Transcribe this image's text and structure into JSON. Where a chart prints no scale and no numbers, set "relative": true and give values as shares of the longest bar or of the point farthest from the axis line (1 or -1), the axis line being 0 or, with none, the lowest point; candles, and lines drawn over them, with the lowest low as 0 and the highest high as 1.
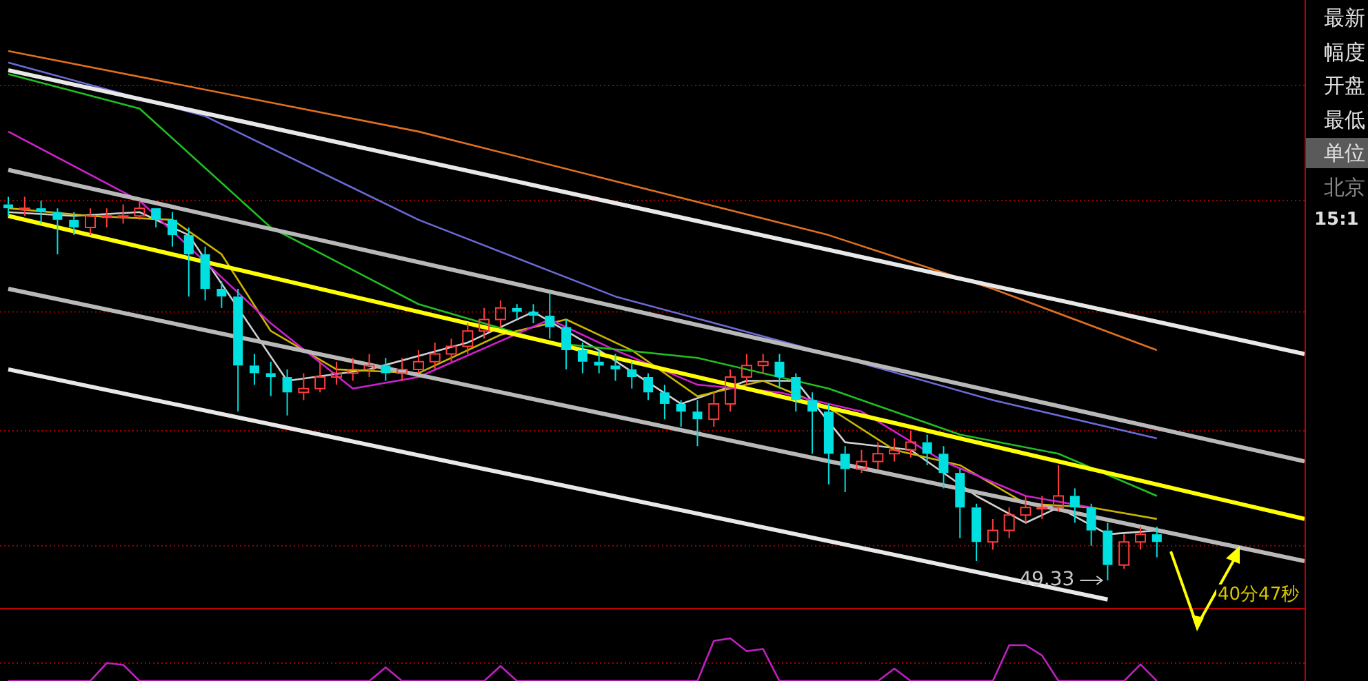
{
  "chart_data": [
    {
      "type": "candlestick",
      "relative": true,
      "ref_lines": [
        {
          "axis": "y",
          "value": 1.29,
          "color": "#a00000",
          "line_style": "dotted"
        },
        {
          "axis": "y",
          "value": 0.99,
          "color": "#a00000",
          "line_style": "dotted"
        },
        {
          "axis": "y",
          "value": 0.7,
          "color": "#a00000",
          "line_style": "dotted"
        },
        {
          "axis": "y",
          "value": 0.39,
          "color": "#a00000",
          "line_style": "dotted"
        },
        {
          "axis": "y",
          "value": 0.09,
          "color": "#a00000",
          "line_style": "dotted"
        }
      ],
      "categories": [
        null,
        null,
        null,
        null,
        null,
        null,
        null,
        null,
        null,
        null,
        null,
        null,
        null,
        null,
        null,
        null,
        null,
        null,
        null,
        null,
        null,
        null,
        null,
        null,
        null,
        null,
        null,
        null,
        null,
        null,
        null,
        null,
        null,
        null,
        null,
        null,
        null,
        null,
        null,
        null,
        null,
        null,
        null,
        null,
        null,
        null,
        null,
        null,
        null,
        null,
        null,
        null,
        null,
        null,
        null,
        null,
        null,
        null,
        null,
        null,
        null,
        null,
        null,
        null,
        null,
        null,
        null,
        null,
        null,
        null,
        null,
        null,
        null,
        null,
        null,
        null,
        null,
        null,
        null,
        null
      ],
      "ohlc": [
        [
          0.98,
          1.0,
          0.95,
          0.97
        ],
        [
          0.97,
          1.0,
          0.95,
          0.97
        ],
        [
          0.97,
          0.99,
          0.93,
          0.96
        ],
        [
          0.96,
          0.97,
          0.85,
          0.94
        ],
        [
          0.94,
          0.96,
          0.9,
          0.92
        ],
        [
          0.92,
          0.97,
          0.9,
          0.95
        ],
        [
          0.95,
          0.97,
          0.92,
          0.95
        ],
        [
          0.95,
          0.98,
          0.93,
          0.95
        ],
        [
          0.95,
          0.99,
          0.94,
          0.97
        ],
        [
          0.97,
          0.97,
          0.92,
          0.94
        ],
        [
          0.94,
          0.96,
          0.87,
          0.9
        ],
        [
          0.9,
          0.92,
          0.74,
          0.85
        ],
        [
          0.85,
          0.87,
          0.73,
          0.76
        ],
        [
          0.76,
          0.78,
          0.71,
          0.74
        ],
        [
          0.74,
          0.76,
          0.44,
          0.56
        ],
        [
          0.56,
          0.59,
          0.51,
          0.54
        ],
        [
          0.54,
          0.57,
          0.48,
          0.53
        ],
        [
          0.53,
          0.55,
          0.43,
          0.49
        ],
        [
          0.49,
          0.54,
          0.47,
          0.5
        ],
        [
          0.5,
          0.57,
          0.49,
          0.53
        ],
        [
          0.53,
          0.57,
          0.51,
          0.54
        ],
        [
          0.54,
          0.58,
          0.52,
          0.55
        ],
        [
          0.55,
          0.59,
          0.53,
          0.56
        ],
        [
          0.56,
          0.58,
          0.52,
          0.54
        ],
        [
          0.54,
          0.58,
          0.52,
          0.55
        ],
        [
          0.55,
          0.6,
          0.54,
          0.57
        ],
        [
          0.57,
          0.62,
          0.55,
          0.59
        ],
        [
          0.59,
          0.63,
          0.57,
          0.61
        ],
        [
          0.61,
          0.67,
          0.59,
          0.65
        ],
        [
          0.65,
          0.71,
          0.63,
          0.68
        ],
        [
          0.68,
          0.73,
          0.66,
          0.71
        ],
        [
          0.71,
          0.72,
          0.68,
          0.7
        ],
        [
          0.7,
          0.72,
          0.67,
          0.69
        ],
        [
          0.69,
          0.75,
          0.63,
          0.66
        ],
        [
          0.66,
          0.68,
          0.55,
          0.6
        ],
        [
          0.6,
          0.62,
          0.54,
          0.57
        ],
        [
          0.57,
          0.6,
          0.54,
          0.56
        ],
        [
          0.56,
          0.59,
          0.52,
          0.55
        ],
        [
          0.55,
          0.57,
          0.5,
          0.53
        ],
        [
          0.53,
          0.54,
          0.47,
          0.49
        ],
        [
          0.49,
          0.51,
          0.42,
          0.46
        ],
        [
          0.46,
          0.47,
          0.4,
          0.44
        ],
        [
          0.44,
          0.47,
          0.35,
          0.42
        ],
        [
          0.42,
          0.49,
          0.4,
          0.46
        ],
        [
          0.46,
          0.55,
          0.44,
          0.53
        ],
        [
          0.53,
          0.59,
          0.51,
          0.56
        ],
        [
          0.56,
          0.59,
          0.54,
          0.57
        ],
        [
          0.57,
          0.59,
          0.5,
          0.53
        ],
        [
          0.53,
          0.54,
          0.44,
          0.47
        ],
        [
          0.47,
          0.49,
          0.33,
          0.44
        ],
        [
          0.44,
          0.46,
          0.25,
          0.33
        ],
        [
          0.33,
          0.35,
          0.23,
          0.29
        ],
        [
          0.29,
          0.34,
          0.28,
          0.31
        ],
        [
          0.31,
          0.36,
          0.29,
          0.33
        ],
        [
          0.33,
          0.37,
          0.31,
          0.34
        ],
        [
          0.34,
          0.39,
          0.32,
          0.36
        ],
        [
          0.36,
          0.38,
          0.3,
          0.33
        ],
        [
          0.33,
          0.35,
          0.24,
          0.28
        ],
        [
          0.28,
          0.29,
          0.11,
          0.19
        ],
        [
          0.19,
          0.2,
          0.05,
          0.1
        ],
        [
          0.1,
          0.16,
          0.08,
          0.13
        ],
        [
          0.13,
          0.19,
          0.11,
          0.17
        ],
        [
          0.17,
          0.22,
          0.15,
          0.19
        ],
        [
          0.19,
          0.22,
          0.16,
          0.19
        ],
        [
          0.19,
          0.3,
          0.18,
          0.22
        ],
        [
          0.22,
          0.24,
          0.15,
          0.19
        ],
        [
          0.19,
          0.2,
          0.09,
          0.13
        ],
        [
          0.13,
          0.15,
          0,
          0.04
        ],
        [
          0.04,
          0.12,
          0.03,
          0.1
        ],
        [
          0.1,
          0.14,
          0.08,
          0.12
        ],
        [
          0.12,
          0.14,
          0.06,
          0.1
        ],
        null,
        null,
        null,
        null,
        null,
        null,
        null,
        null,
        null
      ],
      "series": [
        {
          "type": "line",
          "color": "#e8e8e8",
          "values": [
            1.33,
            null,
            null,
            null,
            null,
            null,
            null,
            null,
            null,
            null,
            null,
            null,
            null,
            null,
            null,
            null,
            null,
            null,
            null,
            null,
            null,
            null,
            null,
            null,
            null,
            null,
            null,
            null,
            null,
            null,
            null,
            null,
            null,
            null,
            null,
            null,
            null,
            null,
            null,
            null,
            null,
            null,
            null,
            null,
            null,
            null,
            null,
            null,
            null,
            null,
            null,
            null,
            null,
            null,
            null,
            null,
            null,
            null,
            null,
            null,
            null,
            null,
            null,
            null,
            null,
            null,
            null,
            null,
            null,
            null,
            null,
            null,
            null,
            null,
            null,
            null,
            null,
            null,
            null,
            0.59
          ]
        },
        {
          "type": "line",
          "color": "#b8b8b8",
          "values": [
            1.07,
            null,
            null,
            null,
            null,
            null,
            null,
            null,
            null,
            null,
            null,
            null,
            null,
            null,
            null,
            null,
            null,
            null,
            null,
            null,
            null,
            null,
            null,
            null,
            null,
            null,
            null,
            null,
            null,
            null,
            null,
            null,
            null,
            null,
            null,
            null,
            null,
            null,
            null,
            null,
            null,
            null,
            null,
            null,
            null,
            null,
            null,
            null,
            null,
            null,
            null,
            null,
            null,
            null,
            null,
            null,
            null,
            null,
            null,
            null,
            null,
            null,
            null,
            null,
            null,
            null,
            null,
            null,
            null,
            null,
            null,
            null,
            null,
            null,
            null,
            null,
            null,
            null,
            null,
            0.31
          ]
        },
        {
          "type": "line",
          "color": "#ffff00",
          "values": [
            0.95,
            null,
            null,
            null,
            null,
            null,
            null,
            null,
            null,
            null,
            null,
            null,
            null,
            null,
            null,
            null,
            null,
            null,
            null,
            null,
            null,
            null,
            null,
            null,
            null,
            null,
            null,
            null,
            null,
            null,
            null,
            null,
            null,
            null,
            null,
            null,
            null,
            null,
            null,
            null,
            null,
            null,
            null,
            null,
            null,
            null,
            null,
            null,
            null,
            null,
            null,
            null,
            null,
            null,
            null,
            null,
            null,
            null,
            null,
            null,
            null,
            null,
            null,
            null,
            null,
            null,
            null,
            null,
            null,
            null,
            null,
            null,
            null,
            null,
            null,
            null,
            null,
            null,
            null,
            0.16
          ]
        },
        {
          "type": "line",
          "color": "#b8b8b8",
          "values": [
            0.76,
            null,
            null,
            null,
            null,
            null,
            null,
            null,
            null,
            null,
            null,
            null,
            null,
            null,
            null,
            null,
            null,
            null,
            null,
            null,
            null,
            null,
            null,
            null,
            null,
            null,
            null,
            null,
            null,
            null,
            null,
            null,
            null,
            null,
            null,
            null,
            null,
            null,
            null,
            null,
            null,
            null,
            null,
            null,
            null,
            null,
            null,
            null,
            null,
            null,
            null,
            null,
            null,
            null,
            null,
            null,
            null,
            null,
            null,
            null,
            null,
            null,
            null,
            null,
            null,
            null,
            null,
            null,
            null,
            null,
            null,
            null,
            null,
            null,
            null,
            null,
            null,
            null,
            null,
            0.05
          ]
        },
        {
          "type": "line",
          "color": "#e8e8e8",
          "values": [
            0.55,
            null,
            null,
            null,
            null,
            null,
            null,
            null,
            null,
            null,
            null,
            null,
            null,
            null,
            null,
            null,
            null,
            null,
            null,
            null,
            null,
            null,
            null,
            null,
            null,
            null,
            null,
            null,
            null,
            null,
            null,
            null,
            null,
            null,
            null,
            null,
            null,
            null,
            null,
            null,
            null,
            null,
            null,
            null,
            null,
            null,
            null,
            null,
            null,
            null,
            null,
            null,
            null,
            null,
            null,
            null,
            null,
            null,
            null,
            null,
            null,
            null,
            null,
            null,
            null,
            null,
            null,
            -0.05,
            null,
            null,
            null,
            null,
            null,
            null,
            null,
            null,
            null,
            null,
            null,
            null
          ]
        },
        {
          "type": "line",
          "color": "#e07020",
          "values": [
            1.38,
            null,
            null,
            null,
            null,
            null,
            null,
            null,
            null,
            null,
            null,
            null,
            null,
            null,
            null,
            null,
            null,
            null,
            null,
            null,
            null,
            null,
            null,
            null,
            null,
            1.17,
            null,
            null,
            null,
            null,
            null,
            null,
            null,
            null,
            null,
            null,
            null,
            null,
            null,
            null,
            null,
            null,
            null,
            null,
            null,
            null,
            null,
            null,
            null,
            null,
            0.9,
            null,
            null,
            null,
            null,
            null,
            null,
            null,
            null,
            null,
            0.76,
            null,
            null,
            null,
            null,
            null,
            null,
            null,
            null,
            null,
            0.6,
            null,
            null,
            null,
            null,
            null,
            null,
            null,
            null,
            null
          ]
        },
        {
          "type": "line",
          "color": "#6a6ad8",
          "values": [
            1.35,
            null,
            null,
            null,
            null,
            null,
            null,
            null,
            null,
            null,
            null,
            null,
            1.21,
            null,
            null,
            null,
            null,
            null,
            null,
            null,
            null,
            null,
            null,
            null,
            null,
            0.94,
            null,
            null,
            null,
            null,
            null,
            null,
            null,
            null,
            null,
            null,
            null,
            0.74,
            null,
            null,
            null,
            null,
            null,
            null,
            null,
            null,
            null,
            null,
            null,
            null,
            0.59,
            null,
            null,
            null,
            null,
            null,
            null,
            null,
            null,
            null,
            0.47,
            null,
            null,
            null,
            null,
            null,
            null,
            null,
            null,
            null,
            0.37,
            null,
            null,
            null,
            null,
            null,
            null,
            null,
            null,
            null
          ]
        },
        {
          "type": "line",
          "color": "#20c020",
          "values": [
            1.32,
            null,
            null,
            null,
            null,
            null,
            null,
            null,
            1.23,
            null,
            null,
            null,
            null,
            null,
            null,
            null,
            0.92,
            null,
            null,
            null,
            null,
            null,
            null,
            null,
            null,
            0.72,
            null,
            null,
            null,
            null,
            null,
            null,
            null,
            0.62,
            null,
            null,
            null,
            null,
            null,
            null,
            null,
            null,
            0.58,
            null,
            null,
            null,
            null,
            null,
            null,
            null,
            0.5,
            null,
            null,
            null,
            null,
            null,
            null,
            null,
            0.38,
            null,
            null,
            null,
            null,
            null,
            0.33,
            null,
            null,
            null,
            null,
            null,
            0.22,
            null,
            null,
            null,
            null,
            null,
            null,
            null,
            null,
            null
          ]
        },
        {
          "type": "line",
          "color": "#d020d0",
          "values": [
            1.17,
            null,
            null,
            null,
            null,
            null,
            null,
            null,
            0.99,
            null,
            null,
            null,
            null,
            null,
            null,
            null,
            0.67,
            null,
            null,
            null,
            null,
            0.5,
            null,
            null,
            null,
            0.53,
            null,
            null,
            null,
            null,
            null,
            null,
            null,
            0.68,
            null,
            null,
            null,
            0.6,
            null,
            null,
            null,
            null,
            0.51,
            null,
            null,
            null,
            null,
            0.49,
            null,
            null,
            null,
            null,
            0.44,
            null,
            null,
            null,
            null,
            0.31,
            null,
            null,
            null,
            null,
            0.22,
            null,
            null,
            null,
            0.19,
            null,
            null,
            null,
            null,
            null,
            null,
            null,
            null,
            null,
            null,
            null,
            null,
            null
          ]
        },
        {
          "type": "line",
          "color": "#c8b400",
          "values": [
            0.97,
            null,
            null,
            null,
            null,
            0.95,
            null,
            null,
            null,
            null,
            0.94,
            null,
            null,
            0.85,
            null,
            null,
            0.65,
            null,
            null,
            null,
            0.55,
            null,
            null,
            null,
            null,
            0.54,
            null,
            null,
            null,
            null,
            0.64,
            null,
            null,
            null,
            0.68,
            null,
            null,
            null,
            0.6,
            null,
            null,
            null,
            0.48,
            null,
            null,
            null,
            0.52,
            null,
            null,
            null,
            0.45,
            null,
            null,
            null,
            0.34,
            null,
            null,
            null,
            0.3,
            null,
            null,
            null,
            0.2,
            null,
            null,
            null,
            0.19,
            null,
            null,
            null,
            0.16,
            null,
            null,
            null,
            null,
            null,
            null,
            null,
            null,
            null
          ]
        },
        {
          "type": "line",
          "color": "#d0d0d0",
          "values": [
            0.96,
            null,
            null,
            null,
            0.95,
            null,
            null,
            null,
            0.96,
            null,
            null,
            0.9,
            null,
            null,
            null,
            null,
            null,
            0.52,
            null,
            null,
            null,
            null,
            0.55,
            null,
            null,
            null,
            null,
            null,
            0.62,
            null,
            null,
            null,
            0.7,
            null,
            null,
            null,
            0.6,
            null,
            null,
            null,
            null,
            0.46,
            null,
            null,
            null,
            0.52,
            null,
            null,
            0.52,
            null,
            null,
            0.36,
            null,
            null,
            null,
            0.34,
            null,
            null,
            null,
            0.22,
            null,
            null,
            0.15,
            null,
            0.19,
            null,
            null,
            0.12,
            null,
            null,
            0.13,
            null,
            null,
            null,
            null,
            null,
            null,
            null,
            null,
            null
          ]
        }
      ],
      "annotations": [
        {
          "text": "49.33",
          "y": 0
        },
        "40分47秒"
      ]
    },
    {
      "type": "line",
      "relative": true,
      "color": "#c020c0",
      "ref_lines": [
        {
          "axis": "y",
          "value": 0.42,
          "color": "#a00000",
          "line_style": "dotted"
        }
      ],
      "categories": [
        null,
        null,
        null,
        null,
        null,
        null,
        null,
        null,
        null,
        null,
        null,
        null,
        null,
        null,
        null,
        null,
        null,
        null,
        null,
        null,
        null,
        null,
        null,
        null,
        null,
        null,
        null,
        null,
        null,
        null,
        null,
        null,
        null,
        null,
        null,
        null,
        null,
        null,
        null,
        null,
        null,
        null,
        null,
        null,
        null,
        null,
        null,
        null,
        null,
        null,
        null,
        null,
        null,
        null,
        null,
        null,
        null,
        null,
        null,
        null,
        null,
        null,
        null,
        null,
        null,
        null,
        null,
        null,
        null,
        null,
        null,
        null,
        null,
        null,
        null,
        null,
        null,
        null,
        null,
        null
      ],
      "values": [
        0,
        0,
        0,
        0,
        0,
        0,
        0.42,
        0.38,
        0,
        0,
        0,
        0,
        0,
        0,
        0,
        0,
        0,
        0,
        0,
        0,
        0,
        0,
        0,
        0.32,
        0,
        0,
        0,
        0,
        0,
        0,
        0.35,
        0,
        0,
        0,
        0,
        0,
        0,
        0,
        0,
        0,
        0,
        0,
        0,
        0.94,
        1,
        0.7,
        0.75,
        0,
        0,
        0,
        0,
        0,
        0,
        0,
        0.29,
        0,
        0,
        0,
        0,
        0,
        0,
        0.84,
        0.84,
        0.6,
        0,
        0,
        0,
        0,
        0,
        0.39,
        0,
        null,
        null,
        null,
        null,
        null,
        null,
        null,
        null,
        null
      ]
    },
    {
      "type": "other",
      "annotations": [
        "最新",
        "幅度",
        "开盘",
        "最低",
        "单位",
        "北京",
        "15:1"
      ]
    }
  ]
}
